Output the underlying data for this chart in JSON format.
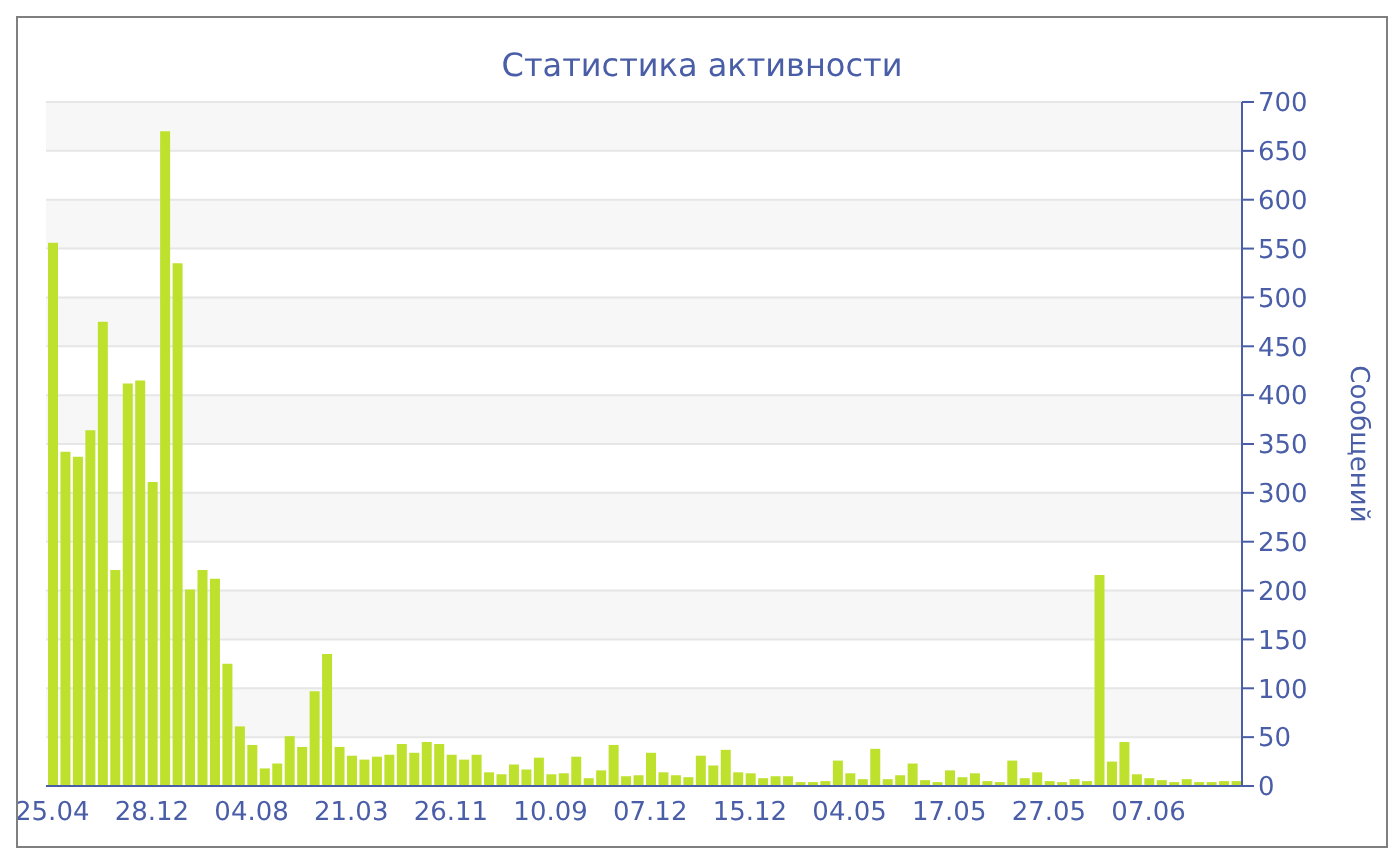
{
  "chart_data": {
    "type": "bar",
    "title": "Статистика активности",
    "ylabel": "Сообщений",
    "categories": [
      "25.04",
      null,
      null,
      null,
      null,
      null,
      null,
      null,
      "28.12",
      null,
      null,
      null,
      null,
      null,
      null,
      null,
      "04.08",
      null,
      null,
      null,
      null,
      null,
      null,
      null,
      "21.03",
      null,
      null,
      null,
      null,
      null,
      null,
      null,
      "26.11",
      null,
      null,
      null,
      null,
      null,
      null,
      null,
      "10.09",
      null,
      null,
      null,
      null,
      null,
      null,
      null,
      "07.12",
      null,
      null,
      null,
      null,
      null,
      null,
      null,
      "15.12",
      null,
      null,
      null,
      null,
      null,
      null,
      null,
      "04.05",
      null,
      null,
      null,
      null,
      null,
      null,
      null,
      "17.05",
      null,
      null,
      null,
      null,
      null,
      null,
      null,
      "27.05",
      null,
      null,
      null,
      null,
      null,
      null,
      null,
      "07.06",
      null,
      null,
      null,
      null,
      null,
      null,
      null
    ],
    "values": [
      556,
      342,
      337,
      364,
      475,
      221,
      412,
      415,
      311,
      670,
      535,
      201,
      221,
      212,
      125,
      61,
      42,
      18,
      23,
      51,
      40,
      97,
      135,
      40,
      31,
      27,
      30,
      32,
      43,
      34,
      45,
      43,
      32,
      27,
      32,
      14,
      12,
      22,
      17,
      29,
      12,
      13,
      30,
      8,
      16,
      42,
      10,
      11,
      34,
      14,
      11,
      9,
      31,
      21,
      37,
      14,
      13,
      8,
      10,
      10,
      4,
      4,
      5,
      26,
      13,
      7,
      38,
      7,
      11,
      23,
      6,
      4,
      16,
      9,
      13,
      5,
      4,
      26,
      8,
      14,
      5,
      4,
      7,
      5,
      216,
      25,
      45,
      12,
      8,
      6,
      4,
      7,
      4,
      4,
      5,
      5
    ],
    "color": "#bde12d",
    "ylim": [
      0,
      700
    ],
    "yticks": [
      0,
      50,
      100,
      150,
      200,
      250,
      300,
      350,
      400,
      450,
      500,
      550,
      600,
      650,
      700
    ],
    "grid": "y"
  }
}
